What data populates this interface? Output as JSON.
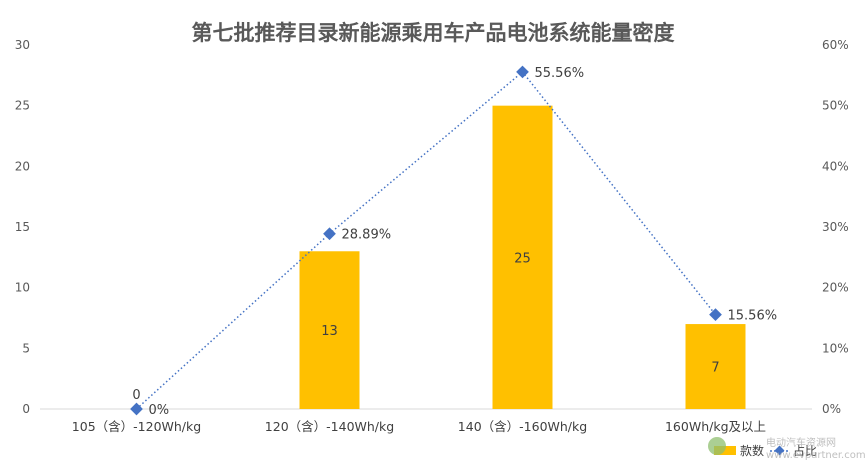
{
  "chart_data": {
    "type": "bar",
    "title": "第七批推荐目录新能源乘用车产品电池系统能量密度",
    "categories": [
      "105（含）-120Wh/kg",
      "120（含）-140Wh/kg",
      "140（含）-160Wh/kg",
      "160Wh/kg及以上"
    ],
    "series": [
      {
        "name": "款数",
        "type": "bar",
        "axis": "left",
        "color": "#FFC000",
        "values": [
          0,
          13,
          25,
          7
        ],
        "labels": [
          "0",
          "13",
          "25",
          "7"
        ]
      },
      {
        "name": "占比",
        "type": "line",
        "axis": "right",
        "color": "#4472C4",
        "style": "dotted",
        "values": [
          0,
          28.89,
          55.56,
          15.56
        ],
        "labels": [
          "0%",
          "28.89%",
          "55.56%",
          "15.56%"
        ]
      }
    ],
    "y_left": {
      "min": 0,
      "max": 30,
      "ticks": [
        "0",
        "5",
        "10",
        "15",
        "20",
        "25",
        "30"
      ]
    },
    "y_right": {
      "min": 0,
      "max": 60,
      "ticks": [
        "0%",
        "10%",
        "20%",
        "30%",
        "40%",
        "50%",
        "60%"
      ]
    },
    "legend_position": "bottom-right",
    "grid": false
  },
  "watermark": {
    "text": "电动汽车资源网",
    "subtext": "www.evpartner.com"
  }
}
